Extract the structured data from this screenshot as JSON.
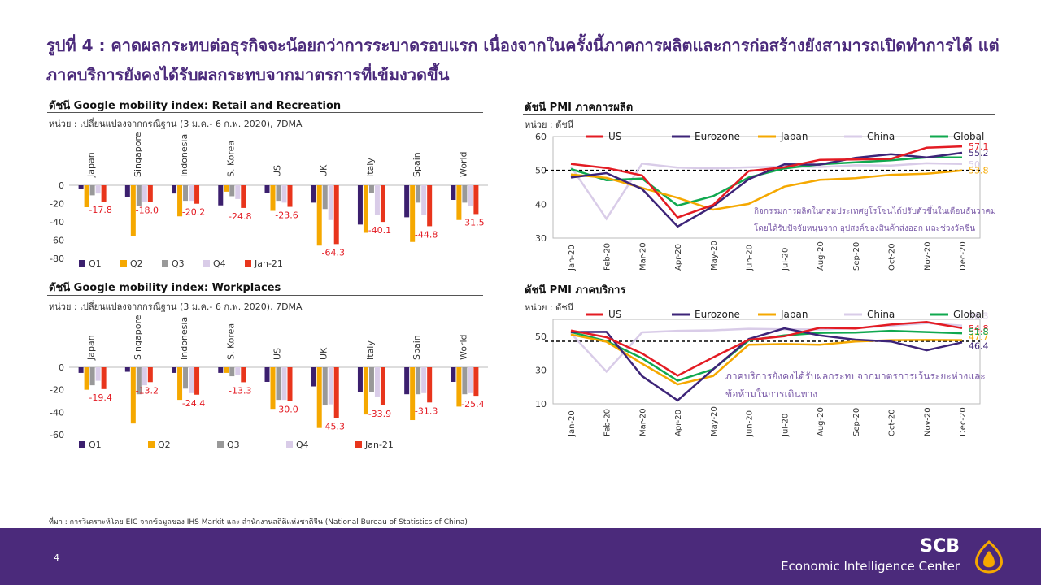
{
  "page": {
    "title": "รูปที่ 4 : คาดผลกระทบต่อธุรกิจจะน้อยกว่าการระบาดรอบแรก เนื่องจากในครั้งนี้ภาคการผลิตและการก่อสร้างยังสามารถเปิดทำการได้ แต่ภาคบริการยังคงได้รับผลกระทบจากมาตรการที่เข้มงวดขึ้น",
    "source": "ที่มา : การวิเคราะห์โดย EIC จากข้อมูลของ IHS Markit และ สำนักงานสถิติแห่งชาติจีน (National Bureau of Statistics of China)",
    "page_number": "4",
    "logo_main": "SCB",
    "logo_sub": "Economic Intelligence Center"
  },
  "colors": {
    "brand": "#4b2a7b",
    "Q1": "#3b1f6e",
    "Q2": "#f5a800",
    "Q3": "#999999",
    "Q4": "#d9cce8",
    "Jan21": "#e8351c",
    "US": "#e31b23",
    "Eurozone": "#3d2478",
    "Japan": "#f5a800",
    "China": "#d9cce8",
    "Global": "#10a84f"
  },
  "chart_data": [
    {
      "type": "bar",
      "title": "ดัชนี Google mobility index: Retail and Recreation",
      "subtitle": "หน่วย : เปลี่ยนแปลงจากกรณีฐาน (3 ม.ค.- 6 ก.พ. 2020), 7DMA",
      "categories": [
        "Japan",
        "Singapore",
        "Indonesia",
        "S. Korea",
        "US",
        "UK",
        "Italy",
        "Spain",
        "World"
      ],
      "series": [
        {
          "name": "Q1",
          "values": [
            -4,
            -13,
            -9,
            -22,
            -8,
            -19,
            -43,
            -35,
            -16
          ]
        },
        {
          "name": "Q2",
          "values": [
            -24,
            -56,
            -34,
            -7,
            -28,
            -66,
            -52,
            -62,
            -38
          ]
        },
        {
          "name": "Q3",
          "values": [
            -11,
            -23,
            -17,
            -12,
            -17,
            -26,
            -8,
            -19,
            -19
          ]
        },
        {
          "name": "Q4",
          "values": [
            -9,
            -18,
            -17,
            -15,
            -19,
            -38,
            -32,
            -32,
            -23
          ]
        },
        {
          "name": "Jan-21",
          "values": [
            -17.8,
            -18.0,
            -20.2,
            -24.8,
            -23.6,
            -64.3,
            -40.1,
            -44.8,
            -31.5
          ]
        }
      ],
      "data_labels": [
        "-17.8",
        "-18.0",
        "-20.2",
        "-24.8",
        "-23.6",
        "-64.3",
        "-40.1",
        "-44.8",
        "-31.5"
      ],
      "ylim": [
        -80,
        0
      ],
      "yticks": [
        "0",
        "-20",
        "-40",
        "-60",
        "-80"
      ],
      "legend": "bottom"
    },
    {
      "type": "bar",
      "title": "ดัชนี Google mobility index: Workplaces",
      "subtitle": "หน่วย : เปลี่ยนแปลงจากกรณีฐาน (3 ม.ค.- 6 ก.พ. 2020), 7DMA",
      "categories": [
        "Japan",
        "Singapore",
        "Indonesia",
        "S. Korea",
        "US",
        "UK",
        "Italy",
        "Spain",
        "World"
      ],
      "series": [
        {
          "name": "Q1",
          "values": [
            -5,
            -4,
            -5,
            -5,
            -13,
            -17,
            -22,
            -24,
            -13
          ]
        },
        {
          "name": "Q2",
          "values": [
            -20,
            -50,
            -29,
            -5,
            -37,
            -54,
            -42,
            -47,
            -35
          ]
        },
        {
          "name": "Q3",
          "values": [
            -16,
            -24,
            -19,
            -8,
            -29,
            -34,
            -22,
            -24,
            -24
          ]
        },
        {
          "name": "Q4",
          "values": [
            -12,
            -16,
            -23,
            -7,
            -29,
            -33,
            -26,
            -23,
            -23
          ]
        },
        {
          "name": "Jan-21",
          "values": [
            -19.4,
            -13.2,
            -24.4,
            -13.3,
            -30.0,
            -45.3,
            -33.9,
            -31.3,
            -25.4
          ]
        }
      ],
      "data_labels": [
        "-19.4",
        "-13.2",
        "-24.4",
        "-13.3",
        "-30.0",
        "-45.3",
        "-33.9",
        "-31.3",
        "-25.4"
      ],
      "ylim": [
        -60,
        0
      ],
      "yticks": [
        "0",
        "-20",
        "-40",
        "-60"
      ],
      "legend": "bottom"
    },
    {
      "type": "line",
      "title": "ดัชนี PMI ภาคการผลิต",
      "subtitle": "หน่วย : ดัชนี",
      "x": [
        "Jan-20",
        "Feb-20",
        "Mar-20",
        "Apr-20",
        "May-20",
        "Jun-20",
        "Jul-20",
        "Aug-20",
        "Sep-20",
        "Oct-20",
        "Nov-20",
        "Dec-20"
      ],
      "series": [
        {
          "name": "US",
          "values": [
            51.9,
            50.7,
            48.5,
            36.1,
            39.8,
            49.8,
            50.9,
            53.1,
            53.2,
            53.4,
            56.7,
            57.1
          ]
        },
        {
          "name": "Eurozone",
          "values": [
            47.9,
            49.2,
            44.5,
            33.4,
            39.4,
            47.4,
            51.8,
            51.7,
            53.7,
            54.8,
            53.8,
            55.2
          ]
        },
        {
          "name": "Japan",
          "values": [
            48.8,
            47.8,
            44.8,
            41.9,
            38.4,
            40.1,
            45.2,
            47.2,
            47.7,
            48.7,
            49.0,
            50.0
          ]
        },
        {
          "name": "China",
          "values": [
            51.1,
            35.7,
            52.0,
            50.8,
            50.6,
            50.9,
            51.1,
            51.0,
            51.5,
            51.4,
            52.1,
            51.9
          ]
        },
        {
          "name": "Global",
          "values": [
            50.4,
            47.1,
            47.6,
            39.6,
            42.4,
            47.9,
            50.6,
            51.8,
            52.4,
            53.0,
            53.8,
            53.8
          ]
        }
      ],
      "end_labels": [
        "57.1",
        "55.2",
        "53.8",
        "50",
        ""
      ],
      "ylim": [
        30,
        60
      ],
      "yticks": [
        "30",
        "40",
        "50",
        "60"
      ],
      "reference_line": 50,
      "annotation": [
        "กิจกรรมการผลิตในกลุ่มประเทศยูโรโซนได้ปรับตัวขึ้นในเดือนธันวาคม",
        "โดยได้รับปัจจัยหนุนจาก อุปสงค์ของสินค้าส่งออก และช่วงวัคซีน"
      ],
      "legend": "top"
    },
    {
      "type": "line",
      "title": "ดัชนี PMI ภาคบริการ",
      "subtitle": "หน่วย : ดัชนี",
      "x": [
        "Jan-20",
        "Feb-20",
        "Mar-20",
        "Apr-20",
        "May-20",
        "Jun-20",
        "Jul-20",
        "Aug-20",
        "Sep-20",
        "Oct-20",
        "Nov-20",
        "Dec-20"
      ],
      "series": [
        {
          "name": "US",
          "values": [
            53.4,
            49.4,
            39.8,
            26.7,
            37.5,
            47.9,
            50.0,
            55.0,
            54.6,
            56.9,
            58.4,
            54.8
          ]
        },
        {
          "name": "Eurozone",
          "values": [
            52.5,
            52.6,
            26.4,
            12.0,
            30.5,
            48.3,
            54.7,
            50.5,
            48.0,
            46.9,
            41.7,
            46.4
          ]
        },
        {
          "name": "Japan",
          "values": [
            51.0,
            46.8,
            33.8,
            21.5,
            26.5,
            45.0,
            45.4,
            45.0,
            46.9,
            47.7,
            47.8,
            47.7
          ]
        },
        {
          "name": "China",
          "values": [
            51.8,
            29.1,
            52.3,
            53.2,
            53.5,
            54.4,
            54.1,
            54.0,
            54.8,
            56.2,
            57.8,
            56.3
          ]
        },
        {
          "name": "Global",
          "values": [
            52.5,
            47.1,
            37.0,
            23.7,
            30.5,
            47.5,
            50.5,
            52.0,
            52.2,
            53.2,
            52.5,
            51.8
          ]
        }
      ],
      "end_labels": [
        "54.8",
        "46.4",
        "47.7",
        "56.3",
        "51.8"
      ],
      "ylim": [
        10,
        60
      ],
      "yticks": [
        "10",
        "30",
        "50"
      ],
      "reference_line": 47,
      "annotation": [
        "ภาคบริการยังคงได้รับผลกระทบจากมาตรการเว้นระยะห่างและ",
        "ข้อห้ามในการเดินทาง"
      ],
      "legend": "top"
    }
  ]
}
